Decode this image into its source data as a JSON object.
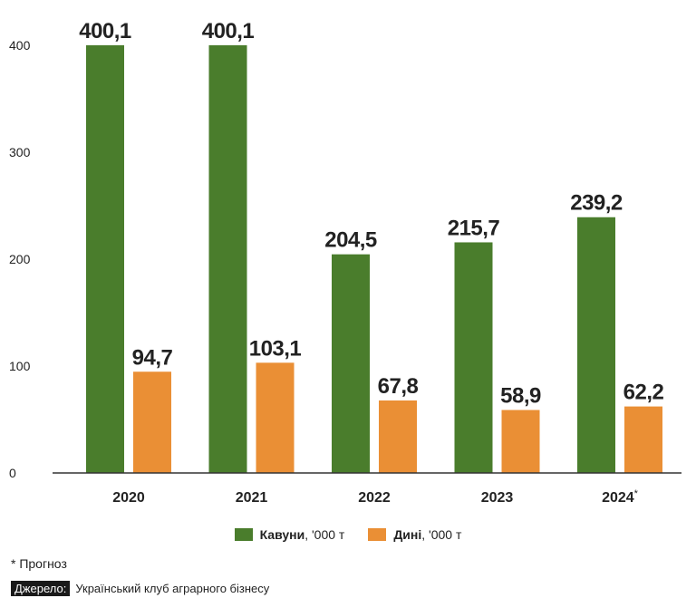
{
  "chart_data": {
    "type": "bar",
    "categories": [
      "2020",
      "2021",
      "2022",
      "2023",
      "2024"
    ],
    "category_notes": [
      "",
      "",
      "",
      "",
      "*"
    ],
    "series": [
      {
        "name": "Кавуни",
        "unit": ", '000 т",
        "color": "#4a7d2c",
        "values": [
          400.1,
          400.1,
          204.5,
          215.7,
          239.2
        ],
        "labels": [
          "400,1",
          "400,1",
          "204,5",
          "215,7",
          "239,2"
        ]
      },
      {
        "name": "Дині",
        "unit": ", '000 т",
        "color": "#ea8f35",
        "values": [
          94.7,
          103.1,
          67.8,
          58.9,
          62.2
        ],
        "labels": [
          "94,7",
          "103,1",
          "67,8",
          "58,9",
          "62,2"
        ]
      }
    ],
    "yticks": [
      0,
      100,
      200,
      300,
      400
    ],
    "ylim": [
      0,
      400
    ],
    "grid": false,
    "legend": "bottom"
  },
  "footnote": "* Прогноз",
  "source": {
    "tag": "Джерело:",
    "text": "Український клуб аграрного бізнесу"
  }
}
